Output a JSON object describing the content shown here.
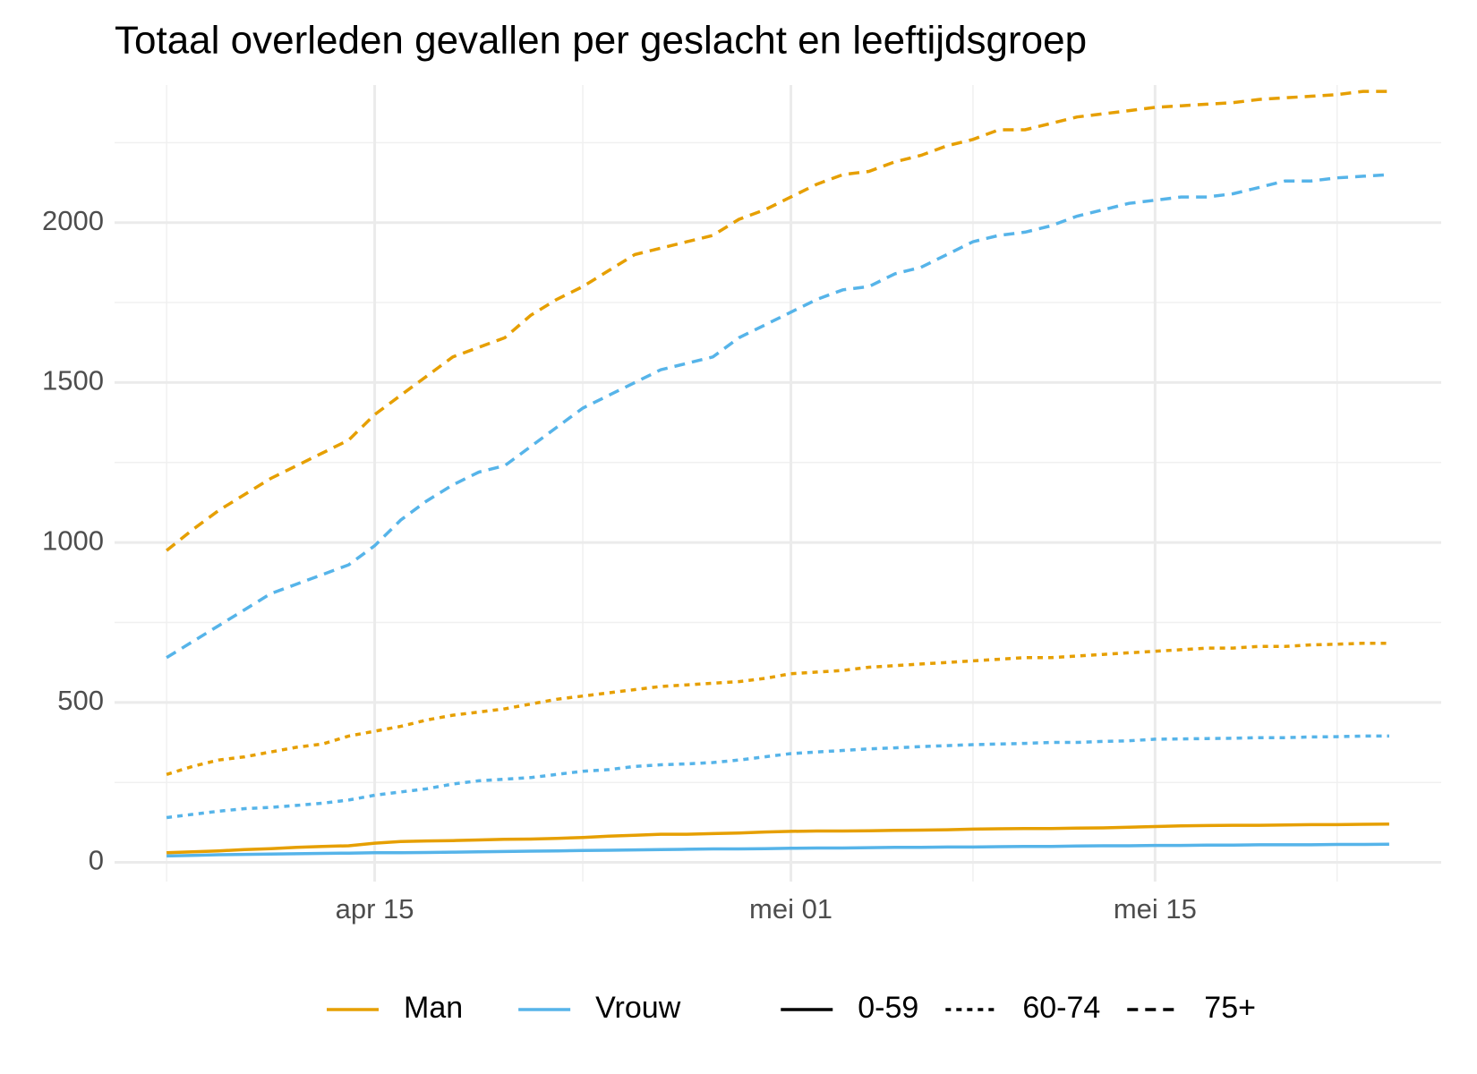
{
  "chart_data": {
    "type": "line",
    "title": "Totaal overleden gevallen per geslacht en leeftijdsgroep",
    "x": [
      "04-07",
      "04-08",
      "04-09",
      "04-10",
      "04-11",
      "04-12",
      "04-13",
      "04-14",
      "04-15",
      "04-16",
      "04-17",
      "04-18",
      "04-19",
      "04-20",
      "04-21",
      "04-22",
      "04-23",
      "04-24",
      "04-25",
      "04-26",
      "04-27",
      "04-28",
      "04-29",
      "04-30",
      "05-01",
      "05-02",
      "05-03",
      "05-04",
      "05-05",
      "05-06",
      "05-07",
      "05-08",
      "05-09",
      "05-10",
      "05-11",
      "05-12",
      "05-13",
      "05-14",
      "05-15",
      "05-16",
      "05-17",
      "05-18",
      "05-19",
      "05-20",
      "05-21",
      "05-22",
      "05-23",
      "05-24"
    ],
    "series": [
      {
        "color": "#E69F00",
        "linetype": "dashed",
        "values": [
          975,
          1040,
          1100,
          1150,
          1200,
          1240,
          1280,
          1320,
          1400,
          1460,
          1520,
          1580,
          1610,
          1640,
          1710,
          1760,
          1800,
          1850,
          1900,
          1920,
          1940,
          1960,
          2010,
          2040,
          2080,
          2120,
          2150,
          2160,
          2190,
          2210,
          2240,
          2260,
          2290,
          2290,
          2310,
          2330,
          2340,
          2350,
          2360,
          2365,
          2370,
          2375,
          2385,
          2390,
          2395,
          2400,
          2410,
          2410
        ]
      },
      {
        "color": "#56B4E9",
        "linetype": "dashed",
        "values": [
          640,
          690,
          740,
          790,
          840,
          870,
          900,
          930,
          990,
          1070,
          1130,
          1180,
          1220,
          1240,
          1300,
          1360,
          1420,
          1460,
          1500,
          1540,
          1560,
          1580,
          1640,
          1680,
          1720,
          1760,
          1790,
          1800,
          1840,
          1860,
          1900,
          1940,
          1960,
          1970,
          1990,
          2020,
          2040,
          2060,
          2070,
          2080,
          2080,
          2090,
          2110,
          2130,
          2130,
          2140,
          2145,
          2150
        ]
      },
      {
        "color": "#E69F00",
        "linetype": "dotted",
        "values": [
          275,
          300,
          320,
          330,
          345,
          360,
          370,
          395,
          410,
          425,
          445,
          460,
          470,
          480,
          495,
          510,
          520,
          530,
          540,
          550,
          555,
          560,
          565,
          575,
          590,
          595,
          600,
          610,
          615,
          620,
          625,
          630,
          635,
          640,
          640,
          645,
          650,
          655,
          660,
          665,
          670,
          670,
          675,
          675,
          680,
          682,
          685,
          685
        ]
      },
      {
        "color": "#56B4E9",
        "linetype": "dotted",
        "values": [
          140,
          150,
          160,
          168,
          172,
          178,
          185,
          195,
          210,
          220,
          230,
          245,
          255,
          260,
          265,
          275,
          285,
          290,
          300,
          305,
          308,
          312,
          320,
          330,
          340,
          345,
          350,
          355,
          358,
          362,
          365,
          368,
          370,
          372,
          375,
          375,
          378,
          380,
          385,
          386,
          387,
          388,
          390,
          390,
          392,
          393,
          395,
          395
        ]
      },
      {
        "color": "#E69F00",
        "linetype": "solid",
        "values": [
          30,
          33,
          36,
          40,
          43,
          47,
          50,
          52,
          60,
          65,
          67,
          68,
          70,
          72,
          73,
          75,
          78,
          82,
          85,
          88,
          88,
          90,
          92,
          95,
          97,
          98,
          98,
          99,
          100,
          101,
          102,
          104,
          105,
          106,
          106,
          107,
          108,
          110,
          112,
          114,
          115,
          116,
          116,
          117,
          118,
          118,
          119,
          120
        ]
      },
      {
        "color": "#56B4E9",
        "linetype": "solid",
        "values": [
          20,
          22,
          24,
          25,
          26,
          27,
          28,
          29,
          30,
          30,
          31,
          32,
          33,
          34,
          35,
          36,
          37,
          38,
          39,
          40,
          41,
          42,
          42,
          43,
          44,
          45,
          45,
          46,
          47,
          47,
          48,
          48,
          49,
          50,
          50,
          51,
          52,
          52,
          53,
          53,
          54,
          54,
          55,
          55,
          55,
          56,
          56,
          57
        ]
      }
    ],
    "legend_color": [
      {
        "name": "Man",
        "color": "#E69F00"
      },
      {
        "name": "Vrouw",
        "color": "#56B4E9"
      }
    ],
    "legend_linetype": [
      {
        "name": "0-59",
        "linetype": "solid"
      },
      {
        "name": "60-74",
        "linetype": "dotted"
      },
      {
        "name": "75+",
        "linetype": "dashed"
      }
    ],
    "xlim": [
      "04-05",
      "05-26"
    ],
    "xticks": [
      {
        "value": "04-15",
        "label": "apr 15"
      },
      {
        "value": "05-01",
        "label": "mei 01"
      },
      {
        "value": "05-15",
        "label": "mei 15"
      }
    ],
    "xminorticks": [
      "04-07",
      "04-23",
      "05-08",
      "05-22"
    ],
    "ylim": [
      -60,
      2430
    ],
    "yticks": [
      0,
      500,
      1000,
      1500,
      2000
    ],
    "yminorticks": [
      250,
      750,
      1250,
      1750,
      2250
    ],
    "grid": true
  }
}
